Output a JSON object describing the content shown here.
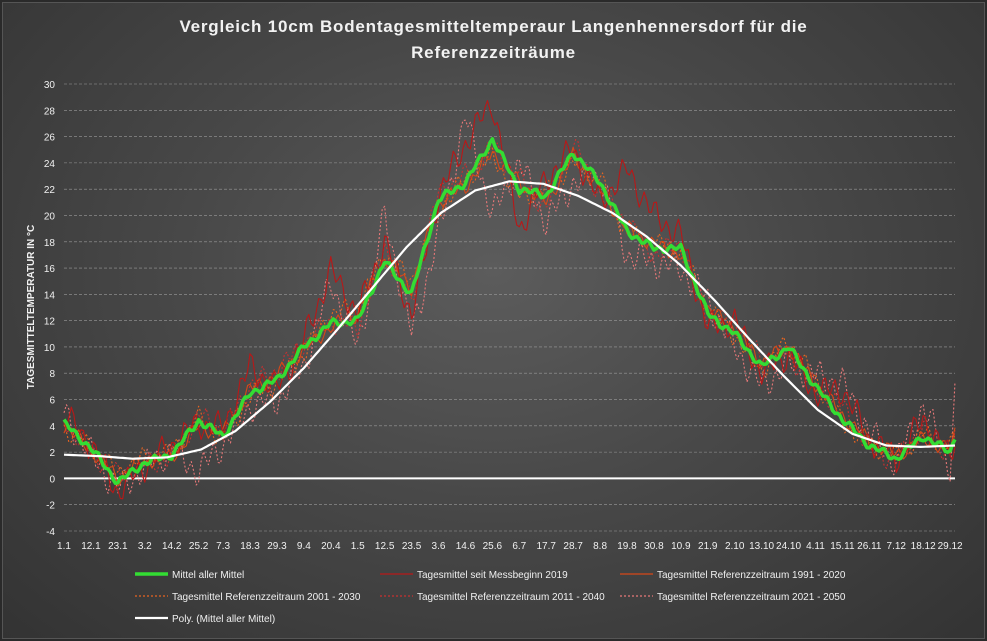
{
  "chart_data": {
    "type": "line",
    "title_line1": "Vergleich 10cm Bodentagesmitteltemperaur Langenhennersdorf für die",
    "title_line2": "Referenzzeiträume",
    "ylabel": "TAGESMITTELTEMPERATUR IN °C",
    "ylim": [
      -4,
      30
    ],
    "yticks": [
      "-4",
      "-2",
      "0",
      "2",
      "4",
      "6",
      "8",
      "10",
      "12",
      "14",
      "16",
      "18",
      "20",
      "22",
      "24",
      "26",
      "28",
      "30"
    ],
    "ytick_values": [
      -4,
      -2,
      0,
      2,
      4,
      6,
      8,
      10,
      12,
      14,
      16,
      18,
      20,
      22,
      24,
      26,
      28,
      30
    ],
    "x_domain": [
      1,
      365
    ],
    "xticks": [
      "1.1",
      "12.1",
      "23.1",
      "3.2",
      "14.2",
      "25.2",
      "7.3",
      "18.3",
      "29.3",
      "9.4",
      "20.4",
      "1.5",
      "12.5",
      "23.5",
      "3.6",
      "14.6",
      "25.6",
      "6.7",
      "17.7",
      "28.7",
      "8.8",
      "19.8",
      "30.8",
      "10.9",
      "21.9",
      "2.10",
      "13.10",
      "24.10",
      "4.11",
      "15.11",
      "26.11",
      "7.12",
      "18.12",
      "29.12"
    ],
    "xtick_days": [
      1,
      12,
      23,
      34,
      45,
      56,
      66,
      77,
      88,
      99,
      110,
      121,
      132,
      143,
      154,
      165,
      176,
      187,
      198,
      209,
      220,
      231,
      242,
      253,
      264,
      275,
      286,
      297,
      308,
      319,
      330,
      341,
      352,
      363
    ],
    "grid": true,
    "legend_position": "bottom",
    "colors": {
      "mean": "#33dd33",
      "poly": "#ffffff",
      "zero_line": "#ffffff",
      "grid": "#9a9a9a",
      "axis_text": "#f0f0f0"
    },
    "series": [
      {
        "name": "Mittel aller Mittel",
        "color": "#33dd33",
        "width": 3.5,
        "dash": "",
        "noise": 0.35,
        "x": [
          1,
          12,
          23,
          34,
          45,
          56,
          66,
          77,
          88,
          99,
          110,
          121,
          132,
          143,
          154,
          165,
          176,
          187,
          198,
          209,
          220,
          231,
          242,
          253,
          264,
          275,
          286,
          297,
          308,
          319,
          330,
          341,
          352,
          363,
          365
        ],
        "y": [
          4.2,
          2.3,
          -0.3,
          1.2,
          1.8,
          4.4,
          3.2,
          6.5,
          7.5,
          10.0,
          11.8,
          12.0,
          16.5,
          14.0,
          21.2,
          22.5,
          25.8,
          22.0,
          21.5,
          24.8,
          22.5,
          18.8,
          17.5,
          17.5,
          12.5,
          11.0,
          8.5,
          10.0,
          7.0,
          4.5,
          2.5,
          1.5,
          3.2,
          2.0,
          3.2
        ]
      },
      {
        "name": "Tagesmittel seit Messbeginn 2019",
        "color": "#b81818",
        "width": 1.1,
        "dash": "",
        "noise": 1.3,
        "x": [
          1,
          12,
          23,
          34,
          45,
          56,
          66,
          77,
          88,
          99,
          110,
          121,
          132,
          143,
          154,
          165,
          176,
          187,
          198,
          209,
          220,
          231,
          242,
          253,
          264,
          275,
          286,
          297,
          308,
          319,
          330,
          341,
          352,
          363,
          365
        ],
        "y": [
          4.8,
          2.6,
          -1.0,
          1.0,
          2.5,
          4.2,
          3.8,
          8.5,
          6.8,
          10.5,
          15.8,
          12.5,
          18.0,
          12.5,
          21.5,
          25.5,
          28.6,
          19.0,
          22.8,
          25.0,
          21.0,
          23.5,
          20.0,
          18.5,
          11.5,
          12.0,
          8.0,
          9.5,
          6.5,
          6.8,
          3.0,
          1.5,
          4.5,
          1.5,
          3.2
        ]
      },
      {
        "name": "Tagesmittel Referenzzeitraum 1991 - 2020",
        "color": "#d84818",
        "width": 1.1,
        "dash": "",
        "noise": 0.7,
        "x": [
          1,
          12,
          23,
          34,
          45,
          56,
          66,
          77,
          88,
          99,
          110,
          121,
          132,
          143,
          154,
          165,
          176,
          187,
          198,
          209,
          220,
          231,
          242,
          253,
          264,
          275,
          286,
          297,
          308,
          319,
          330,
          341,
          352,
          363,
          365
        ],
        "y": [
          4.0,
          2.2,
          0.0,
          1.4,
          1.6,
          4.0,
          3.4,
          6.8,
          7.8,
          9.8,
          11.5,
          12.5,
          16.8,
          14.5,
          21.0,
          22.2,
          24.8,
          22.5,
          21.0,
          24.5,
          22.0,
          19.0,
          17.8,
          17.0,
          12.8,
          11.5,
          8.8,
          10.0,
          7.2,
          4.8,
          2.8,
          1.8,
          3.0,
          2.2,
          3.4
        ]
      },
      {
        "name": "Tagesmittel Referenzzeitraum 2001 - 2030",
        "color": "#e86420",
        "width": 1.1,
        "dash": "2,2",
        "noise": 0.9,
        "x": [
          1,
          12,
          23,
          34,
          45,
          56,
          66,
          77,
          88,
          99,
          110,
          121,
          132,
          143,
          154,
          165,
          176,
          187,
          198,
          209,
          220,
          231,
          242,
          253,
          264,
          275,
          286,
          297,
          308,
          319,
          330,
          341,
          352,
          363,
          365
        ],
        "y": [
          3.8,
          2.4,
          0.4,
          1.6,
          2.0,
          4.6,
          3.0,
          6.2,
          7.2,
          9.5,
          12.5,
          13.0,
          17.0,
          15.0,
          20.5,
          22.8,
          24.5,
          21.5,
          21.8,
          24.0,
          22.8,
          18.5,
          18.0,
          17.2,
          13.0,
          10.8,
          8.2,
          10.5,
          7.5,
          4.2,
          2.6,
          1.6,
          3.4,
          2.4,
          3.0
        ]
      },
      {
        "name": "Tagesmittel Referenzzeitraum 2011 - 2040",
        "color": "#c83030",
        "width": 1.1,
        "dash": "2,2",
        "noise": 1.0,
        "x": [
          1,
          12,
          23,
          34,
          45,
          56,
          66,
          77,
          88,
          99,
          110,
          121,
          132,
          143,
          154,
          165,
          176,
          187,
          198,
          209,
          220,
          231,
          242,
          253,
          264,
          275,
          286,
          297,
          308,
          319,
          330,
          341,
          352,
          363,
          365
        ],
        "y": [
          4.4,
          2.0,
          0.2,
          1.2,
          1.5,
          4.8,
          3.6,
          7.0,
          8.2,
          10.2,
          12.0,
          11.5,
          17.5,
          13.5,
          21.8,
          23.0,
          25.2,
          22.8,
          20.5,
          25.5,
          21.5,
          19.5,
          17.0,
          17.8,
          12.2,
          11.8,
          9.0,
          9.5,
          6.8,
          5.5,
          2.2,
          1.4,
          3.8,
          1.8,
          3.6
        ]
      },
      {
        "name": "Tagesmittel Referenzzeitraum 2021 - 2050",
        "color": "#e87878",
        "width": 1.1,
        "dash": "2,2",
        "noise": 1.4,
        "x": [
          1,
          12,
          23,
          34,
          45,
          56,
          66,
          77,
          88,
          99,
          110,
          121,
          132,
          143,
          154,
          165,
          176,
          187,
          198,
          209,
          220,
          231,
          242,
          253,
          264,
          275,
          286,
          297,
          308,
          319,
          330,
          341,
          352,
          363,
          365
        ],
        "y": [
          5.0,
          1.8,
          -0.8,
          0.8,
          2.2,
          0.5,
          2.6,
          5.5,
          6.0,
          8.5,
          15.0,
          10.0,
          20.0,
          11.0,
          18.5,
          27.5,
          20.0,
          24.0,
          19.5,
          22.5,
          23.0,
          17.0,
          16.5,
          16.0,
          13.5,
          10.0,
          7.0,
          8.8,
          7.8,
          7.2,
          3.5,
          1.2,
          5.5,
          1.0,
          6.5
        ]
      },
      {
        "name": "Poly. (Mittel aller Mittel)",
        "color": "#ffffff",
        "width": 2.2,
        "dash": "",
        "noise": 0,
        "x": [
          1,
          15,
          29,
          43,
          57,
          71,
          85,
          99,
          113,
          127,
          141,
          155,
          169,
          183,
          197,
          211,
          225,
          239,
          253,
          267,
          281,
          295,
          309,
          323,
          337,
          351,
          365
        ],
        "y": [
          1.8,
          1.7,
          1.5,
          1.6,
          2.2,
          3.6,
          5.8,
          8.4,
          11.4,
          14.5,
          17.6,
          20.2,
          21.9,
          22.6,
          22.4,
          21.5,
          20.2,
          18.4,
          16.2,
          13.5,
          10.6,
          7.8,
          5.2,
          3.4,
          2.5,
          2.4,
          2.5
        ]
      }
    ]
  }
}
